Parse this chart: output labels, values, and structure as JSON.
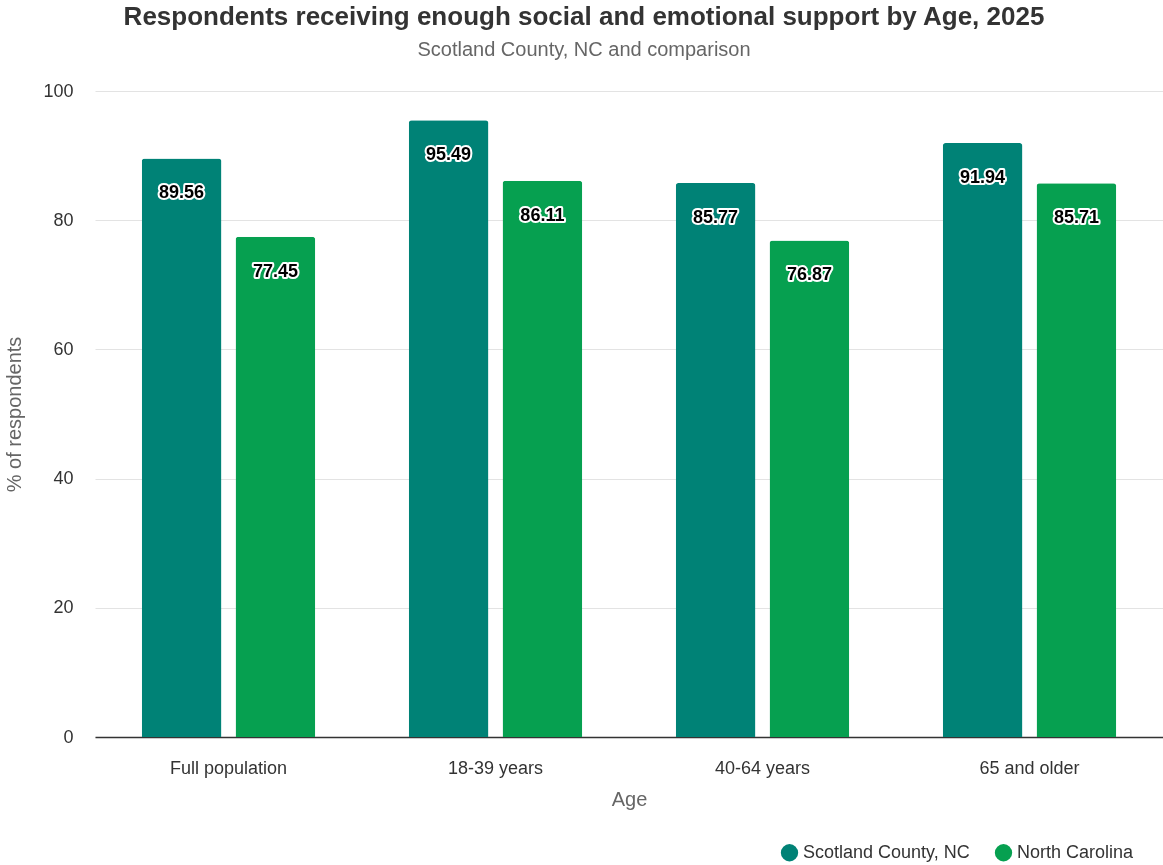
{
  "chart_data": {
    "type": "bar",
    "title": "Respondents receiving enough social and emotional support by Age, 2025",
    "subtitle": "Scotland County, NC and comparison",
    "xlabel": "Age",
    "ylabel": "% of respondents",
    "categories": [
      "Full population",
      "18-39 years",
      "40-64 years",
      "65 and older"
    ],
    "series": [
      {
        "name": "Scotland County, NC",
        "color": "#008276",
        "values": [
          89.56,
          95.49,
          85.77,
          91.94
        ]
      },
      {
        "name": "North Carolina",
        "color": "#06a050",
        "values": [
          77.45,
          86.11,
          76.87,
          85.71
        ]
      }
    ],
    "ylim": [
      0,
      100
    ],
    "yticks": [
      0,
      20,
      40,
      60,
      80,
      100
    ],
    "grid": "y",
    "legend": "bottom right",
    "data_labels": true
  }
}
